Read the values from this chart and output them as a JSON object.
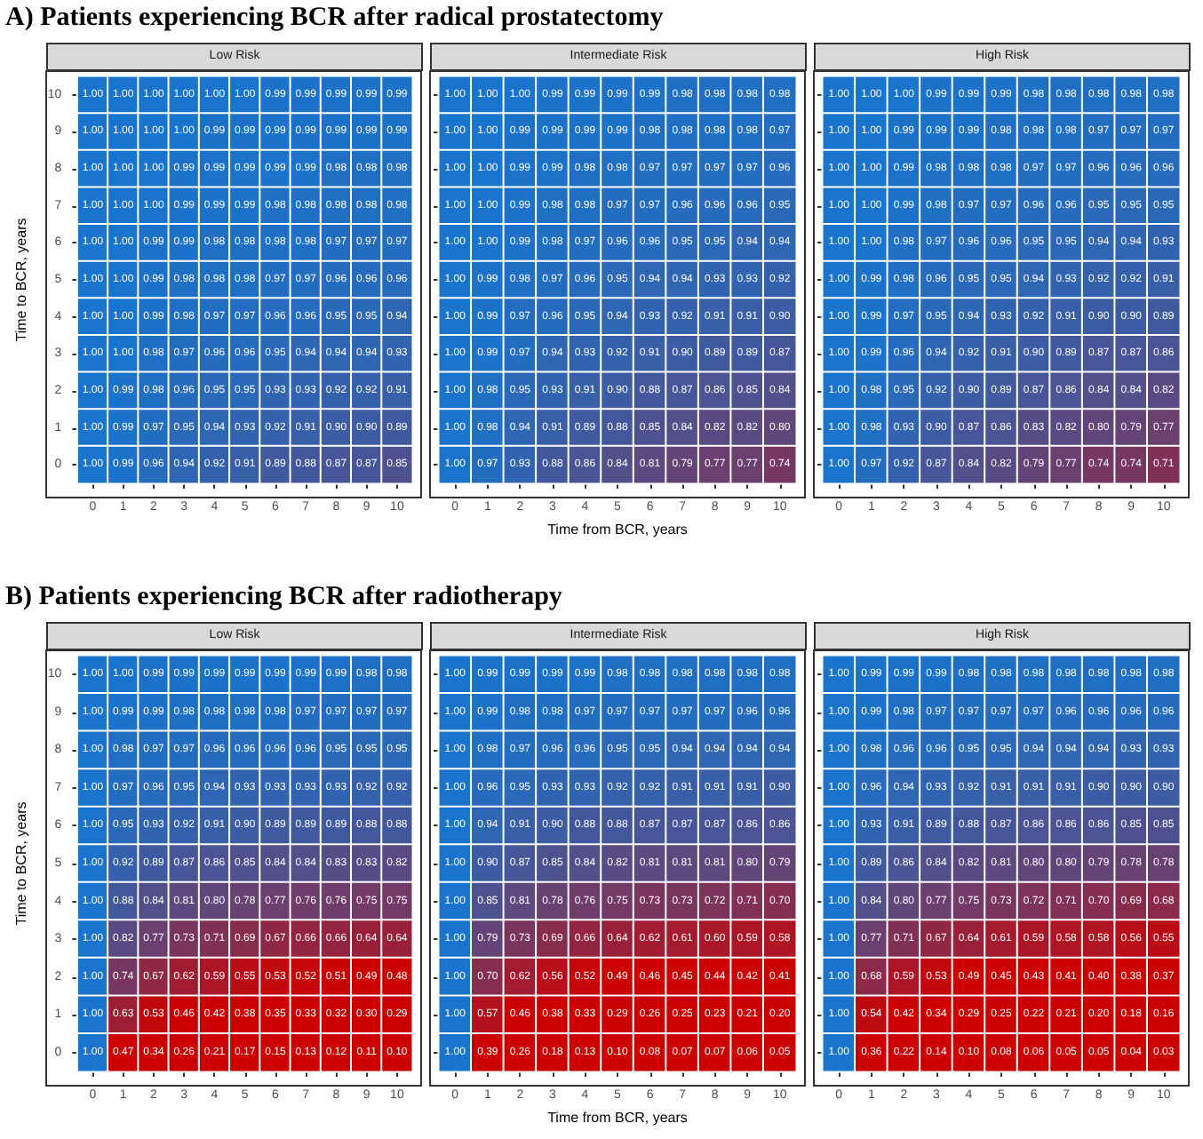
{
  "chart_data": [
    {
      "type": "heatmap",
      "title": "Low Risk",
      "annotations": [
        "A) Patients experiencing BCR after radical prostatectomy"
      ],
      "ylabel": "Time to BCR, years",
      "data_labels": true,
      "categories": [
        "0",
        "1",
        "2",
        "3",
        "4",
        "5",
        "6",
        "7",
        "8",
        "9",
        "10"
      ],
      "y_categories": [
        "10",
        "9",
        "8",
        "7",
        "6",
        "5",
        "4",
        "3",
        "2",
        "1",
        "0"
      ],
      "cells": [
        [
          1.0,
          1.0,
          1.0,
          1.0,
          1.0,
          1.0,
          0.99,
          0.99,
          0.99,
          0.99,
          0.99
        ],
        [
          1.0,
          1.0,
          1.0,
          1.0,
          0.99,
          0.99,
          0.99,
          0.99,
          0.99,
          0.99,
          0.99
        ],
        [
          1.0,
          1.0,
          1.0,
          0.99,
          0.99,
          0.99,
          0.99,
          0.99,
          0.98,
          0.98,
          0.98
        ],
        [
          1.0,
          1.0,
          1.0,
          0.99,
          0.99,
          0.99,
          0.98,
          0.98,
          0.98,
          0.98,
          0.98
        ],
        [
          1.0,
          1.0,
          0.99,
          0.99,
          0.98,
          0.98,
          0.98,
          0.98,
          0.97,
          0.97,
          0.97
        ],
        [
          1.0,
          1.0,
          0.99,
          0.98,
          0.98,
          0.98,
          0.97,
          0.97,
          0.96,
          0.96,
          0.96
        ],
        [
          1.0,
          1.0,
          0.99,
          0.98,
          0.97,
          0.97,
          0.96,
          0.96,
          0.95,
          0.95,
          0.94
        ],
        [
          1.0,
          1.0,
          0.98,
          0.97,
          0.96,
          0.96,
          0.95,
          0.94,
          0.94,
          0.94,
          0.93
        ],
        [
          1.0,
          0.99,
          0.98,
          0.96,
          0.95,
          0.95,
          0.93,
          0.93,
          0.92,
          0.92,
          0.91
        ],
        [
          1.0,
          0.99,
          0.97,
          0.95,
          0.94,
          0.93,
          0.92,
          0.91,
          0.9,
          0.9,
          0.89
        ],
        [
          1.0,
          0.99,
          0.96,
          0.94,
          0.92,
          0.91,
          0.89,
          0.88,
          0.87,
          0.87,
          0.85
        ]
      ],
      "cell_labels": [
        [
          "1.00",
          "1.00",
          "1.00",
          "1.00",
          "1.00",
          "1.00",
          "0.99",
          "0.99",
          "0.99",
          "0.99",
          "0.99"
        ],
        [
          "1.00",
          "1.00",
          "1.00",
          "1.00",
          "0.99",
          "0.99",
          "0.99",
          "0.99",
          "0.99",
          "0.99",
          "0.99"
        ],
        [
          "1.00",
          "1.00",
          "1.00",
          "0.99",
          "0.99",
          "0.99",
          "0.99",
          "0.99",
          "0.98",
          "0.98",
          "0.98"
        ],
        [
          "1.00",
          "1.00",
          "1.00",
          "0.99",
          "0.99",
          "0.99",
          "0.98",
          "0.98",
          "0.98",
          "0.98",
          "0.98"
        ],
        [
          "1.00",
          "1.00",
          "0.99",
          "0.99",
          "0.98",
          "0.98",
          "0.98",
          "0.98",
          "0.97",
          "0.97",
          "0.97"
        ],
        [
          "1.00",
          "1.00",
          "0.99",
          "0.98",
          "0.98",
          "0.98",
          "0.97",
          "0.97",
          "0.96",
          "0.96",
          "0.96"
        ],
        [
          "1.00",
          "1.00",
          "0.99",
          "0.98",
          "0.97",
          "0.97",
          "0.96",
          "0.96",
          "0.95",
          "0.95",
          "0.94"
        ],
        [
          "1.00",
          "1.00",
          "0.98",
          "0.97",
          "0.96",
          "0.96",
          "0.95",
          "0.94",
          "0.94",
          "0.94",
          "0.93"
        ],
        [
          "1.00",
          "0.99",
          "0.98",
          "0.96",
          "0.95",
          "0.95",
          "0.93",
          "0.93",
          "0.92",
          "0.92",
          "0.91"
        ],
        [
          "1.00",
          "0.99",
          "0.97",
          "0.95",
          "0.94",
          "0.93",
          "0.92",
          "0.91",
          "0.90",
          "0.90",
          "0.89"
        ],
        [
          "1.00",
          "0.99",
          "0.96",
          "0.94",
          "0.92",
          "0.91",
          "0.89",
          "0.88",
          "0.87",
          "0.87",
          "0.85"
        ]
      ]
    },
    {
      "type": "heatmap",
      "title": "Intermediate Risk",
      "xlabel": "Time from BCR, years",
      "data_labels": true,
      "tick_labels": "x",
      "categories": [
        "0",
        "1",
        "2",
        "3",
        "4",
        "5",
        "6",
        "7",
        "8",
        "9",
        "10"
      ],
      "y_categories": [
        "10",
        "9",
        "8",
        "7",
        "6",
        "5",
        "4",
        "3",
        "2",
        "1",
        "0"
      ],
      "cells": [
        [
          1.0,
          1.0,
          1.0,
          0.99,
          0.99,
          0.99,
          0.99,
          0.98,
          0.98,
          0.98,
          0.98
        ],
        [
          1.0,
          1.0,
          0.99,
          0.99,
          0.99,
          0.99,
          0.98,
          0.98,
          0.98,
          0.98,
          0.97
        ],
        [
          1.0,
          1.0,
          0.99,
          0.99,
          0.98,
          0.98,
          0.97,
          0.97,
          0.97,
          0.97,
          0.96
        ],
        [
          1.0,
          1.0,
          0.99,
          0.98,
          0.98,
          0.97,
          0.97,
          0.96,
          0.96,
          0.96,
          0.95
        ],
        [
          1.0,
          1.0,
          0.99,
          0.98,
          0.97,
          0.96,
          0.96,
          0.95,
          0.95,
          0.94,
          0.94
        ],
        [
          1.0,
          0.99,
          0.98,
          0.97,
          0.96,
          0.95,
          0.94,
          0.94,
          0.93,
          0.93,
          0.92
        ],
        [
          1.0,
          0.99,
          0.97,
          0.96,
          0.95,
          0.94,
          0.93,
          0.92,
          0.91,
          0.91,
          0.9
        ],
        [
          1.0,
          0.99,
          0.97,
          0.94,
          0.93,
          0.92,
          0.91,
          0.9,
          0.89,
          0.89,
          0.87
        ],
        [
          1.0,
          0.98,
          0.95,
          0.93,
          0.91,
          0.9,
          0.88,
          0.87,
          0.86,
          0.85,
          0.84
        ],
        [
          1.0,
          0.98,
          0.94,
          0.91,
          0.89,
          0.88,
          0.85,
          0.84,
          0.82,
          0.82,
          0.8
        ],
        [
          1.0,
          0.97,
          0.93,
          0.88,
          0.86,
          0.84,
          0.81,
          0.79,
          0.77,
          0.77,
          0.74
        ]
      ],
      "cell_labels": [
        [
          "1.00",
          "1.00",
          "1.00",
          "0.99",
          "0.99",
          "0.99",
          "0.99",
          "0.98",
          "0.98",
          "0.98",
          "0.98"
        ],
        [
          "1.00",
          "1.00",
          "0.99",
          "0.99",
          "0.99",
          "0.99",
          "0.98",
          "0.98",
          "0.98",
          "0.98",
          "0.97"
        ],
        [
          "1.00",
          "1.00",
          "0.99",
          "0.99",
          "0.98",
          "0.98",
          "0.97",
          "0.97",
          "0.97",
          "0.97",
          "0.96"
        ],
        [
          "1.00",
          "1.00",
          "0.99",
          "0.98",
          "0.98",
          "0.97",
          "0.97",
          "0.96",
          "0.96",
          "0.96",
          "0.95"
        ],
        [
          "1.00",
          "1.00",
          "0.99",
          "0.98",
          "0.97",
          "0.96",
          "0.96",
          "0.95",
          "0.95",
          "0.94",
          "0.94"
        ],
        [
          "1.00",
          "0.99",
          "0.98",
          "0.97",
          "0.96",
          "0.95",
          "0.94",
          "0.94",
          "0.93",
          "0.93",
          "0.92"
        ],
        [
          "1.00",
          "0.99",
          "0.97",
          "0.96",
          "0.95",
          "0.94",
          "0.93",
          "0.92",
          "0.91",
          "0.91",
          "0.90"
        ],
        [
          "1.00",
          "0.99",
          "0.97",
          "0.94",
          "0.93",
          "0.92",
          "0.91",
          "0.90",
          "0.89",
          "0.89",
          "0.87"
        ],
        [
          "1.00",
          "0.98",
          "0.95",
          "0.93",
          "0.91",
          "0.90",
          "0.88",
          "0.87",
          "0.86",
          "0.85",
          "0.84"
        ],
        [
          "1.00",
          "0.98",
          "0.94",
          "0.91",
          "0.89",
          "0.88",
          "0.85",
          "0.84",
          "0.82",
          "0.82",
          "0.80"
        ],
        [
          "1.00",
          "0.97",
          "0.93",
          "0.88",
          "0.86",
          "0.84",
          "0.81",
          "0.79",
          "0.77",
          "0.77",
          "0.74"
        ]
      ]
    },
    {
      "type": "heatmap",
      "title": "High Risk",
      "data_labels": true,
      "tick_labels": "x",
      "categories": [
        "0",
        "1",
        "2",
        "3",
        "4",
        "5",
        "6",
        "7",
        "8",
        "9",
        "10"
      ],
      "y_categories": [
        "10",
        "9",
        "8",
        "7",
        "6",
        "5",
        "4",
        "3",
        "2",
        "1",
        "0"
      ],
      "cells": [
        [
          1.0,
          1.0,
          1.0,
          0.99,
          0.99,
          0.99,
          0.98,
          0.98,
          0.98,
          0.98,
          0.98
        ],
        [
          1.0,
          1.0,
          0.99,
          0.99,
          0.99,
          0.98,
          0.98,
          0.98,
          0.97,
          0.97,
          0.97
        ],
        [
          1.0,
          1.0,
          0.99,
          0.98,
          0.98,
          0.98,
          0.97,
          0.97,
          0.96,
          0.96,
          0.96
        ],
        [
          1.0,
          1.0,
          0.99,
          0.98,
          0.97,
          0.97,
          0.96,
          0.96,
          0.95,
          0.95,
          0.95
        ],
        [
          1.0,
          1.0,
          0.98,
          0.97,
          0.96,
          0.96,
          0.95,
          0.95,
          0.94,
          0.94,
          0.93
        ],
        [
          1.0,
          0.99,
          0.98,
          0.96,
          0.95,
          0.95,
          0.94,
          0.93,
          0.92,
          0.92,
          0.91
        ],
        [
          1.0,
          0.99,
          0.97,
          0.95,
          0.94,
          0.93,
          0.92,
          0.91,
          0.9,
          0.9,
          0.89
        ],
        [
          1.0,
          0.99,
          0.96,
          0.94,
          0.92,
          0.91,
          0.9,
          0.89,
          0.87,
          0.87,
          0.86
        ],
        [
          1.0,
          0.98,
          0.95,
          0.92,
          0.9,
          0.89,
          0.87,
          0.86,
          0.84,
          0.84,
          0.82
        ],
        [
          1.0,
          0.98,
          0.93,
          0.9,
          0.87,
          0.86,
          0.83,
          0.82,
          0.8,
          0.79,
          0.77
        ],
        [
          1.0,
          0.97,
          0.92,
          0.87,
          0.84,
          0.82,
          0.79,
          0.77,
          0.74,
          0.74,
          0.71
        ]
      ],
      "cell_labels": [
        [
          "1.00",
          "1.00",
          "1.00",
          "0.99",
          "0.99",
          "0.99",
          "0.98",
          "0.98",
          "0.98",
          "0.98",
          "0.98"
        ],
        [
          "1.00",
          "1.00",
          "0.99",
          "0.99",
          "0.99",
          "0.98",
          "0.98",
          "0.98",
          "0.97",
          "0.97",
          "0.97"
        ],
        [
          "1.00",
          "1.00",
          "0.99",
          "0.98",
          "0.98",
          "0.98",
          "0.97",
          "0.97",
          "0.96",
          "0.96",
          "0.96"
        ],
        [
          "1.00",
          "1.00",
          "0.99",
          "0.98",
          "0.97",
          "0.97",
          "0.96",
          "0.96",
          "0.95",
          "0.95",
          "0.95"
        ],
        [
          "1.00",
          "1.00",
          "0.98",
          "0.97",
          "0.96",
          "0.96",
          "0.95",
          "0.95",
          "0.94",
          "0.94",
          "0.93"
        ],
        [
          "1.00",
          "0.99",
          "0.98",
          "0.96",
          "0.95",
          "0.95",
          "0.94",
          "0.93",
          "0.92",
          "0.92",
          "0.91"
        ],
        [
          "1.00",
          "0.99",
          "0.97",
          "0.95",
          "0.94",
          "0.93",
          "0.92",
          "0.91",
          "0.90",
          "0.90",
          "0.89"
        ],
        [
          "1.00",
          "0.99",
          "0.96",
          "0.94",
          "0.92",
          "0.91",
          "0.90",
          "0.89",
          "0.87",
          "0.87",
          "0.86"
        ],
        [
          "1.00",
          "0.98",
          "0.95",
          "0.92",
          "0.90",
          "0.89",
          "0.87",
          "0.86",
          "0.84",
          "0.84",
          "0.82"
        ],
        [
          "1.00",
          "0.98",
          "0.93",
          "0.90",
          "0.87",
          "0.86",
          "0.83",
          "0.82",
          "0.80",
          "0.79",
          "0.77"
        ],
        [
          "1.00",
          "0.97",
          "0.92",
          "0.87",
          "0.84",
          "0.82",
          "0.79",
          "0.77",
          "0.74",
          "0.74",
          "0.71"
        ]
      ]
    },
    {
      "type": "heatmap",
      "title": "Low Risk",
      "annotations": [
        "B) Patients experiencing BCR after radiotherapy"
      ],
      "ylabel": "Time to BCR, years",
      "data_labels": true,
      "categories": [
        "0",
        "1",
        "2",
        "3",
        "4",
        "5",
        "6",
        "7",
        "8",
        "9",
        "10"
      ],
      "y_categories": [
        "10",
        "9",
        "8",
        "7",
        "6",
        "5",
        "4",
        "3",
        "2",
        "1",
        "0"
      ],
      "cells": [
        [
          1.0,
          1.0,
          0.99,
          0.99,
          0.99,
          0.99,
          0.99,
          0.99,
          0.99,
          0.98,
          0.98
        ],
        [
          1.0,
          0.99,
          0.99,
          0.98,
          0.98,
          0.98,
          0.98,
          0.97,
          0.97,
          0.97,
          0.97
        ],
        [
          1.0,
          0.98,
          0.97,
          0.97,
          0.96,
          0.96,
          0.96,
          0.96,
          0.95,
          0.95,
          0.95
        ],
        [
          1.0,
          0.97,
          0.96,
          0.95,
          0.94,
          0.93,
          0.93,
          0.93,
          0.93,
          0.92,
          0.92
        ],
        [
          1.0,
          0.95,
          0.93,
          0.92,
          0.91,
          0.9,
          0.89,
          0.89,
          0.89,
          0.88,
          0.88
        ],
        [
          1.0,
          0.92,
          0.89,
          0.87,
          0.86,
          0.85,
          0.84,
          0.84,
          0.83,
          0.83,
          0.82
        ],
        [
          1.0,
          0.88,
          0.84,
          0.81,
          0.8,
          0.78,
          0.77,
          0.76,
          0.76,
          0.75,
          0.75
        ],
        [
          1.0,
          0.82,
          0.77,
          0.73,
          0.71,
          0.69,
          0.67,
          0.66,
          0.66,
          0.64,
          0.64
        ],
        [
          1.0,
          0.74,
          0.67,
          0.62,
          0.59,
          0.55,
          0.53,
          0.52,
          0.51,
          0.49,
          0.48
        ],
        [
          1.0,
          0.63,
          0.53,
          0.46,
          0.42,
          0.38,
          0.35,
          0.33,
          0.32,
          0.3,
          0.29
        ],
        [
          1.0,
          0.47,
          0.34,
          0.26,
          0.21,
          0.17,
          0.15,
          0.13,
          0.12,
          0.11,
          0.1
        ]
      ],
      "cell_labels": [
        [
          "1.00",
          "1.00",
          "0.99",
          "0.99",
          "0.99",
          "0.99",
          "0.99",
          "0.99",
          "0.99",
          "0.98",
          "0.98"
        ],
        [
          "1.00",
          "0.99",
          "0.99",
          "0.98",
          "0.98",
          "0.98",
          "0.98",
          "0.97",
          "0.97",
          "0.97",
          "0.97"
        ],
        [
          "1.00",
          "0.98",
          "0.97",
          "0.97",
          "0.96",
          "0.96",
          "0.96",
          "0.96",
          "0.95",
          "0.95",
          "0.95"
        ],
        [
          "1.00",
          "0.97",
          "0.96",
          "0.95",
          "0.94",
          "0.93",
          "0.93",
          "0.93",
          "0.93",
          "0.92",
          "0.92"
        ],
        [
          "1.00",
          "0.95",
          "0.93",
          "0.92",
          "0.91",
          "0.90",
          "0.89",
          "0.89",
          "0.89",
          "0.88",
          "0.88"
        ],
        [
          "1.00",
          "0.92",
          "0.89",
          "0.87",
          "0.86",
          "0.85",
          "0.84",
          "0.84",
          "0.83",
          "0.83",
          "0.82"
        ],
        [
          "1.00",
          "0.88",
          "0.84",
          "0.81",
          "0.80",
          "0.78",
          "0.77",
          "0.76",
          "0.76",
          "0.75",
          "0.75"
        ],
        [
          "1.00",
          "0.82",
          "0.77",
          "0.73",
          "0.71",
          "0.69",
          "0.67",
          "0.66",
          "0.66",
          "0.64",
          "0.64"
        ],
        [
          "1.00",
          "0.74",
          "0.67",
          "0.62",
          "0.59",
          "0.55",
          "0.53",
          "0.52",
          "0.51",
          "0.49",
          "0.48"
        ],
        [
          "1.00",
          "0.63",
          "0.53",
          "0.46",
          "0.42",
          "0.38",
          "0.35",
          "0.33",
          "0.32",
          "0.30",
          "0.29"
        ],
        [
          "1.00",
          "0.47",
          "0.34",
          "0.26",
          "0.21",
          "0.17",
          "0.15",
          "0.13",
          "0.12",
          "0.11",
          "0.10"
        ]
      ]
    },
    {
      "type": "heatmap",
      "title": "Intermediate Risk",
      "xlabel": "Time from BCR, years",
      "data_labels": true,
      "tick_labels": "x",
      "categories": [
        "0",
        "1",
        "2",
        "3",
        "4",
        "5",
        "6",
        "7",
        "8",
        "9",
        "10"
      ],
      "y_categories": [
        "10",
        "9",
        "8",
        "7",
        "6",
        "5",
        "4",
        "3",
        "2",
        "1",
        "0"
      ],
      "cells": [
        [
          1.0,
          0.99,
          0.99,
          0.99,
          0.99,
          0.98,
          0.98,
          0.98,
          0.98,
          0.98,
          0.98
        ],
        [
          1.0,
          0.99,
          0.98,
          0.98,
          0.97,
          0.97,
          0.97,
          0.97,
          0.97,
          0.96,
          0.96
        ],
        [
          1.0,
          0.98,
          0.97,
          0.96,
          0.96,
          0.95,
          0.95,
          0.94,
          0.94,
          0.94,
          0.94
        ],
        [
          1.0,
          0.96,
          0.95,
          0.93,
          0.93,
          0.92,
          0.92,
          0.91,
          0.91,
          0.91,
          0.9
        ],
        [
          1.0,
          0.94,
          0.91,
          0.9,
          0.88,
          0.88,
          0.87,
          0.87,
          0.87,
          0.86,
          0.86
        ],
        [
          1.0,
          0.9,
          0.87,
          0.85,
          0.84,
          0.82,
          0.81,
          0.81,
          0.81,
          0.8,
          0.79
        ],
        [
          1.0,
          0.85,
          0.81,
          0.78,
          0.76,
          0.75,
          0.73,
          0.73,
          0.72,
          0.71,
          0.7
        ],
        [
          1.0,
          0.79,
          0.73,
          0.69,
          0.66,
          0.64,
          0.62,
          0.61,
          0.6,
          0.59,
          0.58
        ],
        [
          1.0,
          0.7,
          0.62,
          0.56,
          0.52,
          0.49,
          0.46,
          0.45,
          0.44,
          0.42,
          0.41
        ],
        [
          1.0,
          0.57,
          0.46,
          0.38,
          0.33,
          0.29,
          0.26,
          0.25,
          0.23,
          0.21,
          0.2
        ],
        [
          1.0,
          0.39,
          0.26,
          0.18,
          0.13,
          0.1,
          0.08,
          0.07,
          0.07,
          0.06,
          0.05
        ]
      ],
      "cell_labels": [
        [
          "1.00",
          "0.99",
          "0.99",
          "0.99",
          "0.99",
          "0.98",
          "0.98",
          "0.98",
          "0.98",
          "0.98",
          "0.98"
        ],
        [
          "1.00",
          "0.99",
          "0.98",
          "0.98",
          "0.97",
          "0.97",
          "0.97",
          "0.97",
          "0.97",
          "0.96",
          "0.96"
        ],
        [
          "1.00",
          "0.98",
          "0.97",
          "0.96",
          "0.96",
          "0.95",
          "0.95",
          "0.94",
          "0.94",
          "0.94",
          "0.94"
        ],
        [
          "1.00",
          "0.96",
          "0.95",
          "0.93",
          "0.93",
          "0.92",
          "0.92",
          "0.91",
          "0.91",
          "0.91",
          "0.90"
        ],
        [
          "1.00",
          "0.94",
          "0.91",
          "0.90",
          "0.88",
          "0.88",
          "0.87",
          "0.87",
          "0.87",
          "0.86",
          "0.86"
        ],
        [
          "1.00",
          "0.90",
          "0.87",
          "0.85",
          "0.84",
          "0.82",
          "0.81",
          "0.81",
          "0.81",
          "0.80",
          "0.79"
        ],
        [
          "1.00",
          "0.85",
          "0.81",
          "0.78",
          "0.76",
          "0.75",
          "0.73",
          "0.73",
          "0.72",
          "0.71",
          "0.70"
        ],
        [
          "1.00",
          "0.79",
          "0.73",
          "0.69",
          "0.66",
          "0.64",
          "0.62",
          "0.61",
          "0.60",
          "0.59",
          "0.58"
        ],
        [
          "1.00",
          "0.70",
          "0.62",
          "0.56",
          "0.52",
          "0.49",
          "0.46",
          "0.45",
          "0.44",
          "0.42",
          "0.41"
        ],
        [
          "1.00",
          "0.57",
          "0.46",
          "0.38",
          "0.33",
          "0.29",
          "0.26",
          "0.25",
          "0.23",
          "0.21",
          "0.20"
        ],
        [
          "1.00",
          "0.39",
          "0.26",
          "0.18",
          "0.13",
          "0.10",
          "0.08",
          "0.07",
          "0.07",
          "0.06",
          "0.05"
        ]
      ]
    },
    {
      "type": "heatmap",
      "title": "High Risk",
      "data_labels": true,
      "tick_labels": "x",
      "categories": [
        "0",
        "1",
        "2",
        "3",
        "4",
        "5",
        "6",
        "7",
        "8",
        "9",
        "10"
      ],
      "y_categories": [
        "10",
        "9",
        "8",
        "7",
        "6",
        "5",
        "4",
        "3",
        "2",
        "1",
        "0"
      ],
      "cells": [
        [
          1.0,
          0.99,
          0.99,
          0.99,
          0.98,
          0.98,
          0.98,
          0.98,
          0.98,
          0.98,
          0.98
        ],
        [
          1.0,
          0.99,
          0.98,
          0.97,
          0.97,
          0.97,
          0.97,
          0.96,
          0.96,
          0.96,
          0.96
        ],
        [
          1.0,
          0.98,
          0.96,
          0.96,
          0.95,
          0.95,
          0.94,
          0.94,
          0.94,
          0.93,
          0.93
        ],
        [
          1.0,
          0.96,
          0.94,
          0.93,
          0.92,
          0.91,
          0.91,
          0.91,
          0.9,
          0.9,
          0.9
        ],
        [
          1.0,
          0.93,
          0.91,
          0.89,
          0.88,
          0.87,
          0.86,
          0.86,
          0.86,
          0.85,
          0.85
        ],
        [
          1.0,
          0.89,
          0.86,
          0.84,
          0.82,
          0.81,
          0.8,
          0.8,
          0.79,
          0.78,
          0.78
        ],
        [
          1.0,
          0.84,
          0.8,
          0.77,
          0.75,
          0.73,
          0.72,
          0.71,
          0.7,
          0.69,
          0.68
        ],
        [
          1.0,
          0.77,
          0.71,
          0.67,
          0.64,
          0.61,
          0.59,
          0.58,
          0.58,
          0.56,
          0.55
        ],
        [
          1.0,
          0.68,
          0.59,
          0.53,
          0.49,
          0.45,
          0.43,
          0.41,
          0.4,
          0.38,
          0.37
        ],
        [
          1.0,
          0.54,
          0.42,
          0.34,
          0.29,
          0.25,
          0.22,
          0.21,
          0.2,
          0.18,
          0.16
        ],
        [
          1.0,
          0.36,
          0.22,
          0.14,
          0.1,
          0.08,
          0.06,
          0.05,
          0.05,
          0.04,
          0.03
        ]
      ],
      "cell_labels": [
        [
          "1.00",
          "0.99",
          "0.99",
          "0.99",
          "0.98",
          "0.98",
          "0.98",
          "0.98",
          "0.98",
          "0.98",
          "0.98"
        ],
        [
          "1.00",
          "0.99",
          "0.98",
          "0.97",
          "0.97",
          "0.97",
          "0.97",
          "0.96",
          "0.96",
          "0.96",
          "0.96"
        ],
        [
          "1.00",
          "0.98",
          "0.96",
          "0.96",
          "0.95",
          "0.95",
          "0.94",
          "0.94",
          "0.94",
          "0.93",
          "0.93"
        ],
        [
          "1.00",
          "0.96",
          "0.94",
          "0.93",
          "0.92",
          "0.91",
          "0.91",
          "0.91",
          "0.90",
          "0.90",
          "0.90"
        ],
        [
          "1.00",
          "0.93",
          "0.91",
          "0.89",
          "0.88",
          "0.87",
          "0.86",
          "0.86",
          "0.86",
          "0.85",
          "0.85"
        ],
        [
          "1.00",
          "0.89",
          "0.86",
          "0.84",
          "0.82",
          "0.81",
          "0.80",
          "0.80",
          "0.79",
          "0.78",
          "0.78"
        ],
        [
          "1.00",
          "0.84",
          "0.80",
          "0.77",
          "0.75",
          "0.73",
          "0.72",
          "0.71",
          "0.70",
          "0.69",
          "0.68"
        ],
        [
          "1.00",
          "0.77",
          "0.71",
          "0.67",
          "0.64",
          "0.61",
          "0.59",
          "0.58",
          "0.58",
          "0.56",
          "0.55"
        ],
        [
          "1.00",
          "0.68",
          "0.59",
          "0.53",
          "0.49",
          "0.45",
          "0.43",
          "0.41",
          "0.40",
          "0.38",
          "0.37"
        ],
        [
          "1.00",
          "0.54",
          "0.42",
          "0.34",
          "0.29",
          "0.25",
          "0.22",
          "0.21",
          "0.20",
          "0.18",
          "0.16"
        ],
        [
          "1.00",
          "0.36",
          "0.22",
          "0.14",
          "0.10",
          "0.08",
          "0.06",
          "0.05",
          "0.05",
          "0.04",
          "0.03"
        ]
      ]
    }
  ]
}
